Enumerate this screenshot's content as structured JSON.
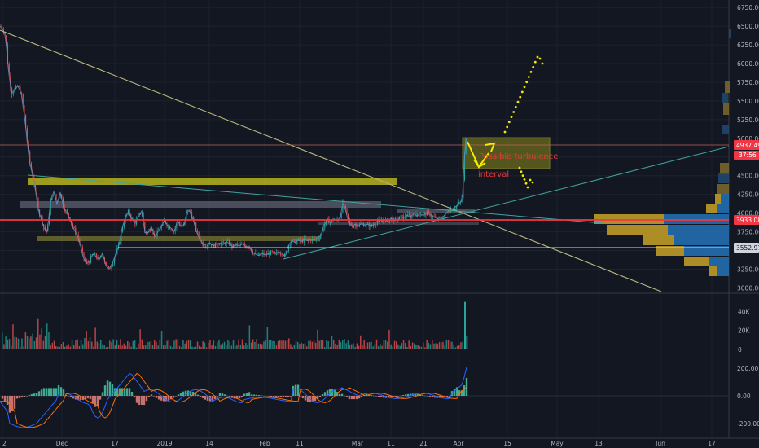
{
  "colors": {
    "background": "#131722",
    "axis_text": "#b2b5be",
    "grid": "#1e222d",
    "separator": "#363a45",
    "candle_up": "#26a69a",
    "candle_down": "#ef5350",
    "price_line": "#5d8fc8",
    "olive_zone": "#b6b41f",
    "grey_zone": "#5d6170",
    "trend_olive": "#b9b77e",
    "trend_teal": "#3fa4a0",
    "support_red": "#f23645",
    "support_white": "#d1d4dc",
    "resistance_line": "#c0625c",
    "arrow_yellow": "#f5e900",
    "annotation_red": "#e53935",
    "vp_yellow": "#c9a227",
    "vp_blue": "#2472b9",
    "vp_dim_yellow": "#7e6a2c",
    "vp_dim_blue": "#214a72",
    "tag_red": "#f23645",
    "tag_white": "#d1d4dc",
    "macd_line": "#2962ff",
    "signal_line": "#ff6d00"
  },
  "chart_data": [
    {
      "type": "candlestick",
      "panel": "price",
      "y_axis": {
        "range": [
          2950,
          6850
        ],
        "ticks": [
          3000,
          3250,
          3500,
          3750,
          4000,
          4250,
          4500,
          4750,
          5000,
          5250,
          5500,
          5750,
          6000,
          6250,
          6500,
          6750
        ],
        "tick_labels": [
          "3000.00",
          "3250.00",
          "3500.00",
          "3750.00",
          "4000.00",
          "4250.00",
          "4500.00",
          "4750.00",
          "5000.00",
          "5250.00",
          "5500.00",
          "5750.00",
          "6000.00",
          "6250.00",
          "6500.00",
          "6750.00"
        ]
      },
      "x_axis": {
        "tick_labels": [
          "2",
          "Dec",
          "17",
          "2019",
          "14",
          "Feb",
          "11",
          "Mar",
          "11",
          "21",
          "Apr",
          "15",
          "May",
          "13",
          "Jun",
          "17"
        ]
      },
      "close_series": [
        [
          0,
          6500
        ],
        [
          3,
          6460
        ],
        [
          5,
          6430
        ],
        [
          7,
          6350
        ],
        [
          10,
          5950
        ],
        [
          14,
          5600
        ],
        [
          17,
          5640
        ],
        [
          22,
          5700
        ],
        [
          26,
          5600
        ],
        [
          30,
          5300
        ],
        [
          33,
          5000
        ],
        [
          36,
          4700
        ],
        [
          39,
          4560
        ],
        [
          42,
          4400
        ],
        [
          45,
          4200
        ],
        [
          48,
          4000
        ],
        [
          51,
          3920
        ],
        [
          54,
          3800
        ],
        [
          58,
          3750
        ],
        [
          62,
          4150
        ],
        [
          66,
          4290
        ],
        [
          70,
          4120
        ],
        [
          74,
          4280
        ],
        [
          78,
          4080
        ],
        [
          82,
          4000
        ],
        [
          86,
          3920
        ],
        [
          90,
          3800
        ],
        [
          94,
          3720
        ],
        [
          98,
          3600
        ],
        [
          102,
          3420
        ],
        [
          106,
          3320
        ],
        [
          110,
          3360
        ],
        [
          114,
          3450
        ],
        [
          118,
          3420
        ],
        [
          122,
          3380
        ],
        [
          126,
          3460
        ],
        [
          130,
          3300
        ],
        [
          134,
          3250
        ],
        [
          138,
          3330
        ],
        [
          142,
          3450
        ],
        [
          146,
          3570
        ],
        [
          150,
          3800
        ],
        [
          154,
          3950
        ],
        [
          158,
          4020
        ],
        [
          162,
          3920
        ],
        [
          166,
          3870
        ],
        [
          170,
          3950
        ],
        [
          174,
          4030
        ],
        [
          178,
          3740
        ],
        [
          182,
          3740
        ],
        [
          186,
          3820
        ],
        [
          190,
          3680
        ],
        [
          194,
          3750
        ],
        [
          198,
          3820
        ],
        [
          202,
          3900
        ],
        [
          206,
          3830
        ],
        [
          210,
          3800
        ],
        [
          214,
          3760
        ],
        [
          218,
          3900
        ],
        [
          222,
          3820
        ],
        [
          226,
          3840
        ],
        [
          230,
          4040
        ],
        [
          234,
          4010
        ],
        [
          238,
          3880
        ],
        [
          242,
          3730
        ],
        [
          246,
          3640
        ],
        [
          250,
          3570
        ],
        [
          254,
          3590
        ],
        [
          258,
          3600
        ],
        [
          262,
          3560
        ],
        [
          266,
          3590
        ],
        [
          270,
          3600
        ],
        [
          274,
          3580
        ],
        [
          278,
          3620
        ],
        [
          282,
          3590
        ],
        [
          286,
          3550
        ],
        [
          290,
          3580
        ],
        [
          294,
          3560
        ],
        [
          298,
          3590
        ],
        [
          302,
          3550
        ],
        [
          306,
          3560
        ],
        [
          310,
          3480
        ],
        [
          314,
          3450
        ],
        [
          318,
          3430
        ],
        [
          322,
          3460
        ],
        [
          326,
          3440
        ],
        [
          330,
          3460
        ],
        [
          334,
          3470
        ],
        [
          338,
          3450
        ],
        [
          342,
          3480
        ],
        [
          346,
          3470
        ],
        [
          350,
          3420
        ],
        [
          354,
          3560
        ],
        [
          358,
          3630
        ],
        [
          362,
          3610
        ],
        [
          366,
          3640
        ],
        [
          370,
          3620
        ],
        [
          374,
          3650
        ],
        [
          378,
          3630
        ],
        [
          382,
          3650
        ],
        [
          386,
          3640
        ],
        [
          390,
          3670
        ],
        [
          394,
          3700
        ],
        [
          398,
          3850
        ],
        [
          402,
          3900
        ],
        [
          406,
          3880
        ],
        [
          410,
          3920
        ],
        [
          414,
          3900
        ],
        [
          418,
          3950
        ],
        [
          421,
          4150
        ],
        [
          424,
          4050
        ],
        [
          428,
          3880
        ],
        [
          432,
          3830
        ],
        [
          436,
          3850
        ],
        [
          440,
          3830
        ],
        [
          444,
          3860
        ],
        [
          448,
          3840
        ],
        [
          452,
          3850
        ],
        [
          456,
          3820
        ],
        [
          460,
          3860
        ],
        [
          464,
          3900
        ],
        [
          468,
          3880
        ],
        [
          472,
          3910
        ],
        [
          476,
          3890
        ],
        [
          480,
          3930
        ],
        [
          484,
          3900
        ],
        [
          488,
          3910
        ],
        [
          492,
          3950
        ],
        [
          496,
          3940
        ],
        [
          500,
          3970
        ],
        [
          504,
          3950
        ],
        [
          508,
          4000
        ],
        [
          512,
          3960
        ],
        [
          516,
          3990
        ],
        [
          520,
          3970
        ],
        [
          524,
          4000
        ],
        [
          528,
          3980
        ],
        [
          532,
          3950
        ],
        [
          536,
          3930
        ],
        [
          540,
          3910
        ],
        [
          544,
          3950
        ],
        [
          548,
          4000
        ],
        [
          552,
          4040
        ],
        [
          556,
          4060
        ],
        [
          560,
          4090
        ],
        [
          563,
          4120
        ],
        [
          566,
          4150
        ],
        [
          568,
          4250
        ],
        [
          570,
          4700
        ],
        [
          572,
          5000
        ],
        [
          574,
          4950
        ]
      ]
    },
    {
      "type": "bar",
      "panel": "volume",
      "y_axis": {
        "ticks": [
          0,
          20,
          40
        ],
        "tick_labels": [
          "0",
          "20K",
          "40K"
        ]
      },
      "spike_value": 50
    },
    {
      "type": "histogram",
      "panel": "macd",
      "y_axis": {
        "ticks": [
          -200,
          0,
          200
        ],
        "tick_labels": [
          "-200.00",
          "0.00",
          "200.00"
        ]
      }
    }
  ],
  "price_tags": {
    "current": "4937.49",
    "countdown": "37:56",
    "support_red": "3933.08",
    "support_white": "3552.97"
  },
  "annotations": {
    "word1": "Possible turbulence",
    "word2": "interval"
  }
}
